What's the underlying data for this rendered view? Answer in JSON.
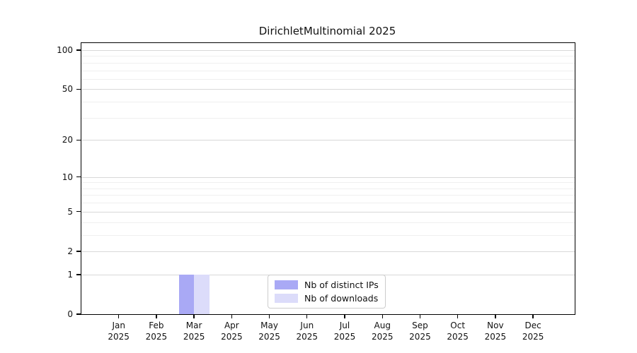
{
  "title": "DirichletMultinomial 2025",
  "colors": {
    "distinct_ips": "#a9a9f5",
    "downloads": "#dcdcfa",
    "grid_major": "#d8d8d8",
    "grid_minor": "#efefef",
    "axis": "#000000",
    "legend_border": "#cccccc",
    "text": "#111111"
  },
  "legend": {
    "items": [
      {
        "label": "Nb of distinct IPs",
        "color": "#a9a9f5"
      },
      {
        "label": "Nb of downloads",
        "color": "#dcdcfa"
      }
    ]
  },
  "chart_data": {
    "type": "bar",
    "title": "DirichletMultinomial 2025",
    "categories": [
      "Jan 2025",
      "Feb 2025",
      "Mar 2025",
      "Apr 2025",
      "May 2025",
      "Jun 2025",
      "Jul 2025",
      "Aug 2025",
      "Sep 2025",
      "Oct 2025",
      "Nov 2025",
      "Dec 2025"
    ],
    "series": [
      {
        "name": "Nb of distinct IPs",
        "color": "#a9a9f5",
        "values": [
          0,
          0,
          1,
          0,
          0,
          0,
          0,
          0,
          0,
          0,
          0,
          0
        ]
      },
      {
        "name": "Nb of downloads",
        "color": "#dcdcfa",
        "values": [
          0,
          0,
          1,
          0,
          0,
          0,
          0,
          0,
          0,
          0,
          0,
          0
        ]
      }
    ],
    "xlabel": "",
    "ylabel": "",
    "yscale": "log1p",
    "ylim": [
      0,
      113
    ],
    "y_major_ticks": [
      0,
      1,
      2,
      5,
      10,
      20,
      50,
      100
    ],
    "y_minor_ticks": [
      3,
      4,
      6,
      7,
      8,
      9,
      30,
      40,
      60,
      70,
      80,
      90
    ],
    "grid": true,
    "legend_position": "inside-bottom-center"
  }
}
